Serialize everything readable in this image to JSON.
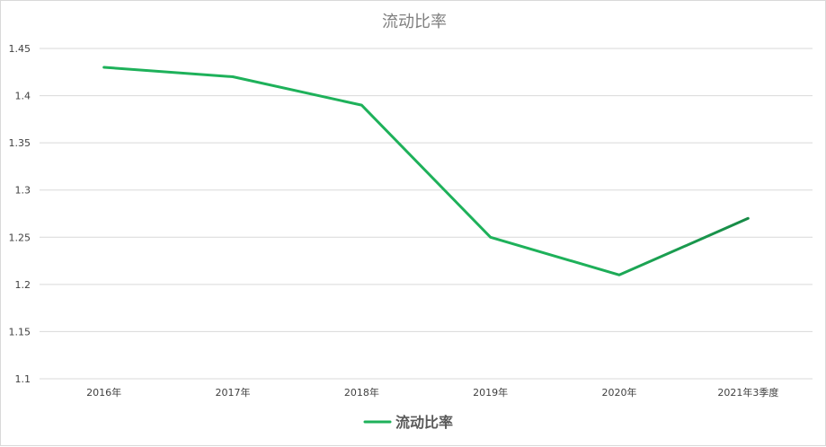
{
  "chart_data": {
    "type": "line",
    "title": "流动比率",
    "categories": [
      "2016年",
      "2017年",
      "2018年",
      "2019年",
      "2020年",
      "2021年3季度"
    ],
    "series": [
      {
        "name": "流动比率",
        "values": [
          1.43,
          1.42,
          1.39,
          1.25,
          1.21,
          1.27
        ],
        "color": "#1eb15a",
        "color_dark": "#178a46"
      }
    ],
    "ylim": [
      1.1,
      1.45
    ],
    "yticks": [
      "1.1",
      "1.15",
      "1.2",
      "1.25",
      "1.3",
      "1.35",
      "1.4",
      "1.45"
    ],
    "grid": true,
    "legend": "bottom"
  }
}
